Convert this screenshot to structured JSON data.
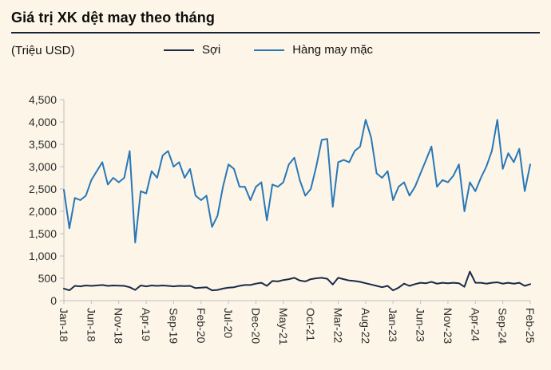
{
  "title": "Giá trị XK dệt may theo tháng",
  "unit_label": "(Triệu USD)",
  "colors": {
    "background": "#FCF5E8",
    "title_underline": "#16243A",
    "axis": "#BFBFBF",
    "tick_label": "#2E2E2E"
  },
  "chart_data": {
    "type": "line",
    "title": "Giá trị XK dệt may theo tháng",
    "unit": "Triệu USD",
    "ylim": [
      0,
      4500
    ],
    "ytick_step": 500,
    "xtick_every": 5,
    "grid": false,
    "legend_position": "top",
    "xtick_labels": [
      "Jan-18",
      "Jun-18",
      "Nov-18",
      "Apr-19",
      "Sep-19",
      "Feb-20",
      "Jul-20",
      "Dec-20",
      "May-21",
      "Oct-21",
      "Mar-22",
      "Aug-22",
      "Jan-23",
      "Jun-23",
      "Nov-23",
      "Apr-24",
      "Sep-24",
      "Feb-25"
    ],
    "categories": [
      "Jan-18",
      "Feb-18",
      "Mar-18",
      "Apr-18",
      "May-18",
      "Jun-18",
      "Jul-18",
      "Aug-18",
      "Sep-18",
      "Oct-18",
      "Nov-18",
      "Dec-18",
      "Jan-19",
      "Feb-19",
      "Mar-19",
      "Apr-19",
      "May-19",
      "Jun-19",
      "Jul-19",
      "Aug-19",
      "Sep-19",
      "Oct-19",
      "Nov-19",
      "Dec-19",
      "Jan-20",
      "Feb-20",
      "Mar-20",
      "Apr-20",
      "May-20",
      "Jun-20",
      "Jul-20",
      "Aug-20",
      "Sep-20",
      "Oct-20",
      "Nov-20",
      "Dec-20",
      "Jan-21",
      "Feb-21",
      "Mar-21",
      "Apr-21",
      "May-21",
      "Jun-21",
      "Jul-21",
      "Aug-21",
      "Sep-21",
      "Oct-21",
      "Nov-21",
      "Dec-21",
      "Jan-22",
      "Feb-22",
      "Mar-22",
      "Apr-22",
      "May-22",
      "Jun-22",
      "Jul-22",
      "Aug-22",
      "Sep-22",
      "Oct-22",
      "Nov-22",
      "Dec-22",
      "Jan-23",
      "Feb-23",
      "Mar-23",
      "Apr-23",
      "May-23",
      "Jun-23",
      "Jul-23",
      "Aug-23",
      "Sep-23",
      "Oct-23",
      "Nov-23",
      "Dec-23",
      "Jan-24",
      "Feb-24",
      "Mar-24",
      "Apr-24",
      "May-24",
      "Jun-24",
      "Jul-24",
      "Aug-24",
      "Sep-24",
      "Oct-24",
      "Nov-24",
      "Dec-24",
      "Jan-25",
      "Feb-25"
    ],
    "series": [
      {
        "name": "Sợi",
        "color": "#1A2B49",
        "values": [
          270,
          230,
          330,
          320,
          340,
          330,
          340,
          350,
          330,
          340,
          335,
          330,
          300,
          240,
          340,
          320,
          340,
          330,
          340,
          330,
          320,
          330,
          325,
          330,
          280,
          290,
          300,
          230,
          240,
          270,
          290,
          300,
          330,
          350,
          350,
          380,
          400,
          330,
          440,
          430,
          460,
          480,
          510,
          450,
          430,
          480,
          500,
          510,
          490,
          360,
          510,
          480,
          450,
          440,
          420,
          390,
          360,
          330,
          300,
          330,
          230,
          290,
          380,
          330,
          370,
          400,
          390,
          420,
          380,
          400,
          390,
          400,
          390,
          310,
          650,
          400,
          400,
          380,
          400,
          410,
          380,
          400,
          380,
          400,
          330,
          370
        ]
      },
      {
        "name": "Hàng may mặc",
        "color": "#2878B8",
        "values": [
          2480,
          1620,
          2300,
          2250,
          2350,
          2700,
          2900,
          3100,
          2600,
          2750,
          2650,
          2750,
          3350,
          1300,
          2450,
          2400,
          2900,
          2750,
          3250,
          3350,
          3000,
          3100,
          2750,
          2950,
          2350,
          2250,
          2350,
          1650,
          1900,
          2550,
          3050,
          2950,
          2550,
          2550,
          2250,
          2550,
          2650,
          1800,
          2600,
          2550,
          2650,
          3050,
          3200,
          2700,
          2350,
          2500,
          3000,
          3600,
          3620,
          2100,
          3100,
          3150,
          3100,
          3350,
          3450,
          4050,
          3650,
          2850,
          2750,
          2900,
          2250,
          2550,
          2650,
          2350,
          2550,
          2850,
          3150,
          3450,
          2550,
          2700,
          2650,
          2800,
          3050,
          2000,
          2650,
          2450,
          2750,
          3000,
          3350,
          4050,
          2950,
          3300,
          3100,
          3400,
          2450,
          3050
        ]
      }
    ]
  }
}
